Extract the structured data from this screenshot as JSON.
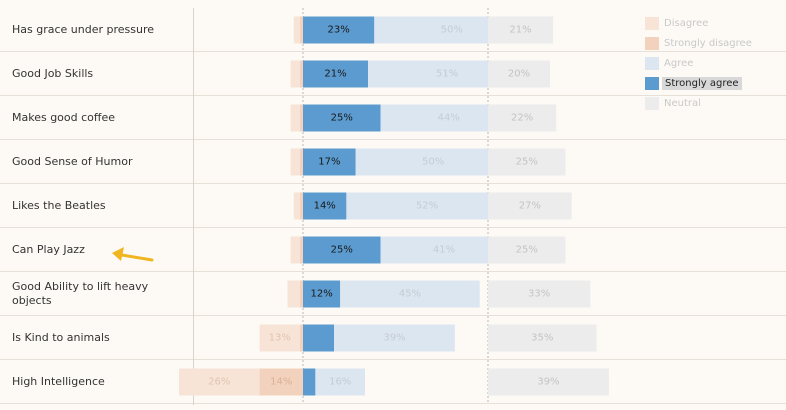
{
  "chart_data": {
    "type": "bar",
    "categories": [
      "Has grace under pressure",
      "Good Job Skills",
      "Makes good coffee",
      "Good Sense of Humor",
      "Likes the Beatles",
      "Can Play Jazz",
      "Good Ability to lift heavy objects",
      "Is Kind to animals",
      "High Intelligence"
    ],
    "series": [
      {
        "name": "Disagree",
        "values": [
          2,
          3,
          3,
          3,
          2,
          3,
          4,
          13,
          26
        ]
      },
      {
        "name": "Strongly disagree",
        "values": [
          1,
          1,
          1,
          1,
          1,
          1,
          1,
          1,
          14
        ]
      },
      {
        "name": "Strongly agree",
        "values": [
          23,
          21,
          25,
          17,
          14,
          25,
          12,
          10,
          4
        ]
      },
      {
        "name": "Agree",
        "values": [
          50,
          51,
          44,
          50,
          52,
          41,
          45,
          39,
          16
        ]
      },
      {
        "name": "Neutral",
        "values": [
          21,
          20,
          22,
          25,
          27,
          25,
          33,
          35,
          39
        ]
      }
    ],
    "labels": {
      "disagree": [
        "",
        "",
        "",
        "",
        "",
        "",
        "",
        "13%",
        "26%"
      ],
      "strongly_disagree": [
        "",
        "",
        "",
        "",
        "",
        "",
        "",
        "",
        "14%"
      ],
      "strongly_agree": [
        "23%",
        "21%",
        "25%",
        "17%",
        "14%",
        "25%",
        "12%",
        "",
        ""
      ],
      "agree": [
        "50%",
        "51%",
        "44%",
        "50%",
        "52%",
        "41%",
        "45%",
        "39%",
        "16%"
      ],
      "neutral": [
        "21%",
        "20%",
        "22%",
        "25%",
        "27%",
        "25%",
        "33%",
        "35%",
        "39%"
      ]
    },
    "colors": {
      "disagree": "#f8e4d6",
      "strongly_disagree": "#f3d2bd",
      "strongly_agree": "#5b9bd0",
      "agree": "#dce6f1",
      "neutral": "#ececec"
    },
    "legend": {
      "position": "top-right",
      "items": [
        "Disagree",
        "Strongly disagree",
        "Agree",
        "Strongly agree",
        "Neutral"
      ],
      "highlighted": "Strongly agree"
    },
    "grid": true
  }
}
